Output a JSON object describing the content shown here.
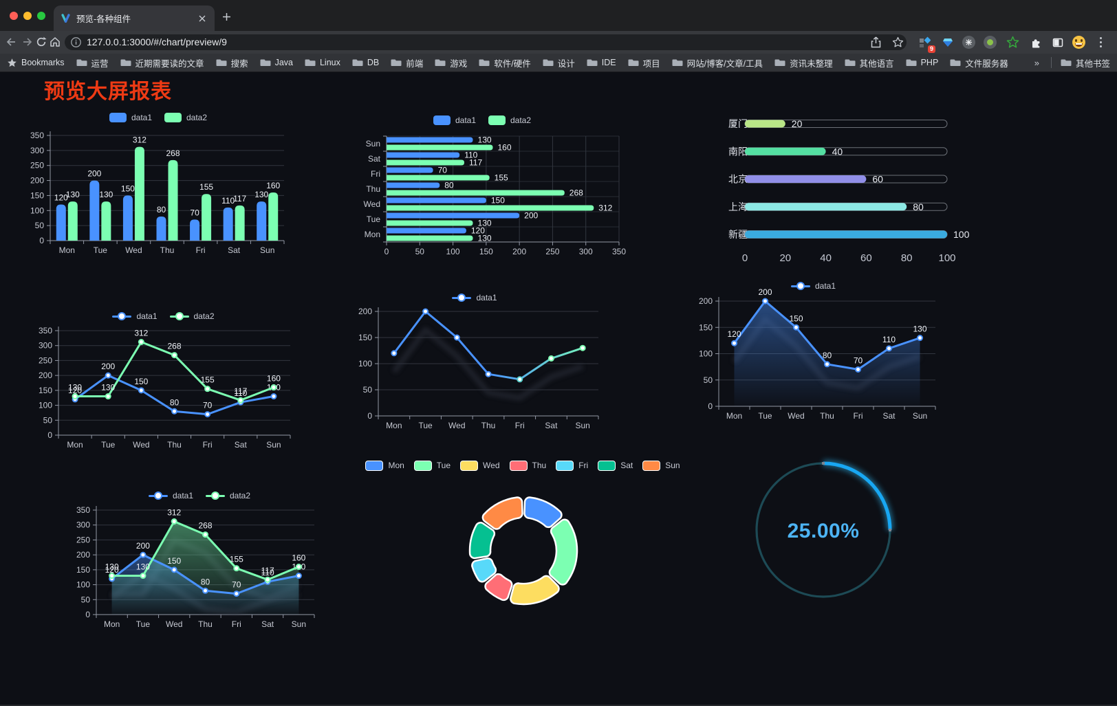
{
  "browser": {
    "tab_title": "预览-各种组件",
    "url": "127.0.0.1:3000/#/chart/preview/9",
    "extensions_badge": "9",
    "bookmarks_label": "Bookmarks",
    "bookmarks": [
      "运营",
      "近期需要读的文章",
      "搜索",
      "Java",
      "Linux",
      "DB",
      "前端",
      "游戏",
      "软件/硬件",
      "设计",
      "IDE",
      "项目",
      "网站/博客/文章/工具",
      "资讯未整理",
      "其他语言",
      "PHP",
      "文件服务器"
    ],
    "bookmarks_overflow": "»",
    "other_bookmarks": "其他书签"
  },
  "page": {
    "title": "预览大屏报表",
    "title_color": "#ee3a14",
    "background": "#0d0f15"
  },
  "chart_data": [
    {
      "id": "bar-vertical",
      "type": "bar",
      "categories": [
        "Mon",
        "Tue",
        "Wed",
        "Thu",
        "Fri",
        "Sat",
        "Sun"
      ],
      "series": [
        {
          "name": "data1",
          "color": "#4992ff",
          "values": [
            120,
            200,
            150,
            80,
            70,
            110,
            130
          ]
        },
        {
          "name": "data2",
          "color": "#7cffb2",
          "values": [
            130,
            130,
            312,
            268,
            155,
            117,
            160
          ]
        }
      ],
      "ylim": [
        0,
        350
      ],
      "ytick_step": 50,
      "grid": true,
      "legend_position": "top"
    },
    {
      "id": "bar-horizontal",
      "type": "bar",
      "orientation": "horizontal",
      "categories": [
        "Mon",
        "Tue",
        "Wed",
        "Thu",
        "Fri",
        "Sat",
        "Sun"
      ],
      "series": [
        {
          "name": "data1",
          "color": "#4992ff",
          "values": [
            120,
            200,
            150,
            80,
            70,
            110,
            130
          ]
        },
        {
          "name": "data2",
          "color": "#7cffb2",
          "values": [
            130,
            130,
            312,
            268,
            155,
            117,
            160
          ]
        }
      ],
      "xlim": [
        0,
        350
      ],
      "xtick_step": 50,
      "grid": true,
      "legend_position": "top"
    },
    {
      "id": "progress-bars",
      "type": "bar",
      "subtype": "progress",
      "max": 100,
      "xticks": [
        0,
        20,
        40,
        60,
        80,
        100
      ],
      "items": [
        {
          "label": "厦门",
          "value": 20,
          "color": "#b9e687"
        },
        {
          "label": "南阳",
          "value": 40,
          "color": "#54dfa2"
        },
        {
          "label": "北京",
          "value": 60,
          "color": "#918fe8"
        },
        {
          "label": "上海",
          "value": 80,
          "color": "#8ce8e4"
        },
        {
          "label": "新疆",
          "value": 100,
          "color": "#3aabdf"
        }
      ]
    },
    {
      "id": "line-two-series",
      "type": "line",
      "categories": [
        "Mon",
        "Tue",
        "Wed",
        "Thu",
        "Fri",
        "Sat",
        "Sun"
      ],
      "series": [
        {
          "name": "data1",
          "color": "#4992ff",
          "values": [
            120,
            200,
            150,
            80,
            70,
            110,
            130
          ]
        },
        {
          "name": "data2",
          "color": "#7cffb2",
          "values": [
            130,
            130,
            312,
            268,
            155,
            117,
            160
          ]
        }
      ],
      "ylim": [
        0,
        350
      ],
      "ytick_step": 50,
      "show_labels": true,
      "legend_position": "top"
    },
    {
      "id": "line-gradient-shadow",
      "type": "line",
      "categories": [
        "Mon",
        "Tue",
        "Wed",
        "Thu",
        "Fri",
        "Sat",
        "Sun"
      ],
      "series": [
        {
          "name": "data1",
          "color": "#4992ff",
          "gradient": [
            "#4992ff",
            "#7cffb2"
          ],
          "values": [
            120,
            200,
            150,
            80,
            70,
            110,
            130
          ]
        }
      ],
      "ylim": [
        0,
        200
      ],
      "ytick_step": 50,
      "show_labels": false,
      "shadow": true,
      "legend_position": "top"
    },
    {
      "id": "area-single",
      "type": "area",
      "categories": [
        "Mon",
        "Tue",
        "Wed",
        "Thu",
        "Fri",
        "Sat",
        "Sun"
      ],
      "series": [
        {
          "name": "data1",
          "color": "#4992ff",
          "area": true,
          "values": [
            120,
            200,
            150,
            80,
            70,
            110,
            130
          ]
        }
      ],
      "ylim": [
        0,
        200
      ],
      "ytick_step": 50,
      "show_labels": true,
      "shadow": true,
      "legend_position": "top"
    },
    {
      "id": "area-two-series",
      "type": "area",
      "categories": [
        "Mon",
        "Tue",
        "Wed",
        "Thu",
        "Fri",
        "Sat",
        "Sun"
      ],
      "series": [
        {
          "name": "data1",
          "color": "#4992ff",
          "area": true,
          "values": [
            120,
            200,
            150,
            80,
            70,
            110,
            130
          ]
        },
        {
          "name": "data2",
          "color": "#7cffb2",
          "area": true,
          "values": [
            130,
            130,
            312,
            268,
            155,
            117,
            160
          ]
        }
      ],
      "ylim": [
        0,
        350
      ],
      "ytick_step": 50,
      "show_labels": true,
      "shadow": true,
      "legend_position": "top"
    },
    {
      "id": "donut",
      "type": "pie",
      "inner_radius_ratio": 0.62,
      "items": [
        {
          "label": "Mon",
          "value": 120,
          "color": "#4992ff"
        },
        {
          "label": "Tue",
          "value": 200,
          "color": "#7cffb2"
        },
        {
          "label": "Wed",
          "value": 150,
          "color": "#fddd60"
        },
        {
          "label": "Thu",
          "value": 80,
          "color": "#ff6e76"
        },
        {
          "label": "Fri",
          "value": 70,
          "color": "#58d9f9"
        },
        {
          "label": "Sat",
          "value": 110,
          "color": "#05c091"
        },
        {
          "label": "Sun",
          "value": 130,
          "color": "#ff8a45"
        }
      ],
      "legend_position": "top"
    },
    {
      "id": "ring-progress",
      "type": "gauge",
      "value": 25,
      "max": 100,
      "label": "25.00%",
      "color": "#18a7f3",
      "glow_color": "#2fbdf8",
      "track_color": "#1d4a55",
      "text_color": "#4db4f4"
    }
  ]
}
